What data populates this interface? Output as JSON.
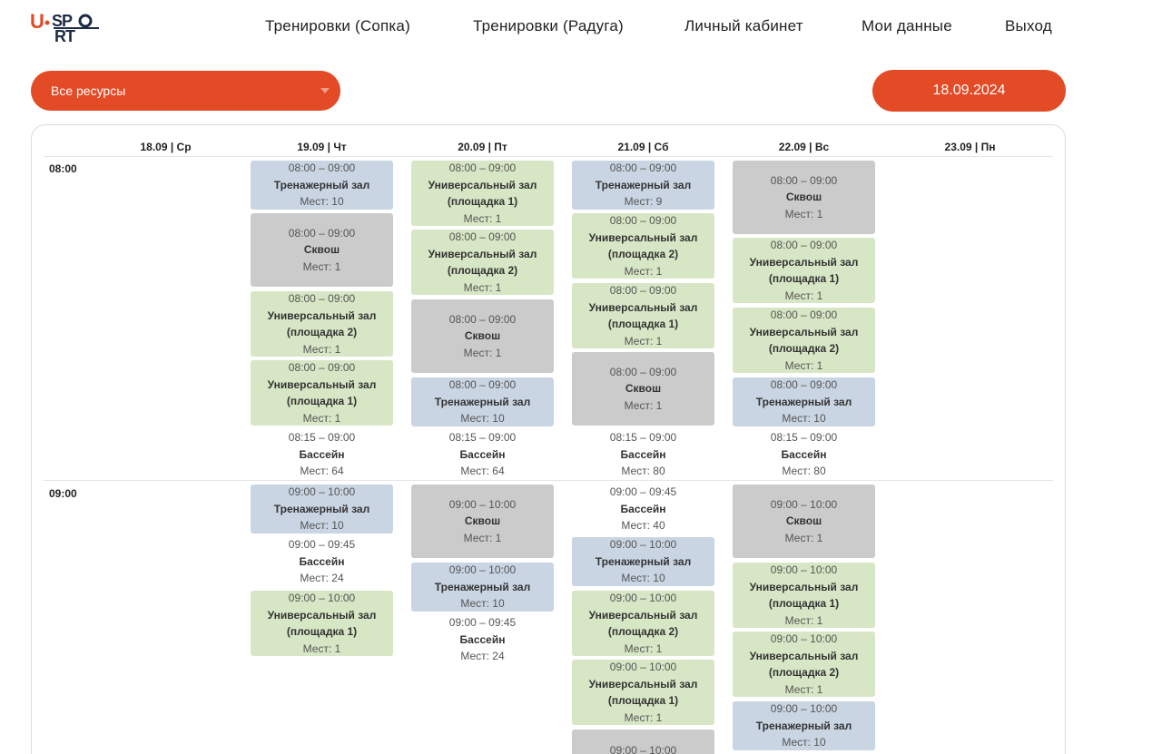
{
  "logo": {
    "text": "U·SPORT",
    "accent": "#e34a26",
    "dark": "#1c2a44"
  },
  "nav": [
    {
      "label": "Тренировки (Сопка)"
    },
    {
      "label": "Тренировки (Радуга)"
    },
    {
      "label": "Личный кабинет"
    },
    {
      "label": "Мои данные"
    },
    {
      "label": "Выход"
    }
  ],
  "controls": {
    "resource_select": "Все ресурсы",
    "date": "18.09.2024",
    "accent": "#e34a26"
  },
  "days": [
    "18.09 | Ср",
    "19.09 | Чт",
    "20.09 | Пт",
    "21.09 | Сб",
    "22.09 | Вс",
    "23.09 | Пн"
  ],
  "hours": [
    "08:00",
    "09:00"
  ],
  "slots": [
    {
      "type": "gym",
      "time": "08:00 – 09:00",
      "name": "Тренажерный зал",
      "places": "Мест: 10"
    },
    {
      "type": "squash",
      "time": "08:00 – 09:00",
      "name": "Сквош",
      "places": "Мест: 1"
    },
    {
      "type": "hall",
      "time": "08:00 – 09:00",
      "name": "Универсальный зал (площадка 2)",
      "places": "Мест: 1"
    },
    {
      "type": "hall",
      "time": "08:00 – 09:00",
      "name": "Универсальный зал (площадка 1)",
      "places": "Мест: 1"
    },
    {
      "type": "pool",
      "time": "08:15 – 09:00",
      "name": "Бассейн",
      "places": "Мест: 64"
    },
    {
      "type": "gym",
      "time": "09:00 – 10:00",
      "name": "Тренажерный зал",
      "places": "Мест: 10"
    },
    {
      "type": "pool",
      "time": "09:00 – 09:45",
      "name": "Бассейн",
      "places": "Мест: 24"
    },
    {
      "type": "hall",
      "time": "09:00 – 10:00",
      "name": "Универсальный зал (площадка 1)",
      "places": "Мест: 1"
    },
    {
      "type": "hall",
      "time": "08:00 – 09:00",
      "name": "Универсальный зал (площадка 1)",
      "places": "Мест: 1"
    },
    {
      "type": "hall",
      "time": "08:00 – 09:00",
      "name": "Универсальный зал (площадка 2)",
      "places": "Мест: 1"
    },
    {
      "type": "squash",
      "time": "08:00 – 09:00",
      "name": "Сквош",
      "places": "Мест: 1"
    },
    {
      "type": "gym",
      "time": "08:00 – 09:00",
      "name": "Тренажерный зал",
      "places": "Мест: 10"
    },
    {
      "type": "pool",
      "time": "08:15 – 09:00",
      "name": "Бассейн",
      "places": "Мест: 64"
    },
    {
      "type": "squash",
      "time": "09:00 – 10:00",
      "name": "Сквош",
      "places": "Мест: 1"
    },
    {
      "type": "gym",
      "time": "09:00 – 10:00",
      "name": "Тренажерный зал",
      "places": "Мест: 10"
    },
    {
      "type": "pool",
      "time": "09:00 – 09:45",
      "name": "Бассейн",
      "places": "Мест: 24"
    },
    {
      "type": "gym",
      "time": "08:00 – 09:00",
      "name": "Тренажерный зал",
      "places": "Мест: 9"
    },
    {
      "type": "hall",
      "time": "08:00 – 09:00",
      "name": "Универсальный зал (площадка 2)",
      "places": "Мест: 1"
    },
    {
      "type": "hall",
      "time": "08:00 – 09:00",
      "name": "Универсальный зал (площадка 1)",
      "places": "Мест: 1"
    },
    {
      "type": "squash",
      "time": "08:00 – 09:00",
      "name": "Сквош",
      "places": "Мест: 1"
    },
    {
      "type": "pool",
      "time": "08:15 – 09:00",
      "name": "Бассейн",
      "places": "Мест: 80"
    },
    {
      "type": "pool",
      "time": "09:00 – 09:45",
      "name": "Бассейн",
      "places": "Мест: 40"
    },
    {
      "type": "gym",
      "time": "09:00 – 10:00",
      "name": "Тренажерный зал",
      "places": "Мест: 10"
    },
    {
      "type": "hall",
      "time": "09:00 – 10:00",
      "name": "Универсальный зал (площадка 2)",
      "places": "Мест: 1"
    },
    {
      "type": "hall",
      "time": "09:00 – 10:00",
      "name": "Универсальный зал (площадка 1)",
      "places": "Мест: 1"
    },
    {
      "type": "squash",
      "time": "09:00 – 10:00",
      "name": "",
      "places": ""
    },
    {
      "type": "squash",
      "time": "08:00 – 09:00",
      "name": "Сквош",
      "places": "Мест: 1"
    },
    {
      "type": "hall",
      "time": "08:00 – 09:00",
      "name": "Универсальный зал (площадка 1)",
      "places": "Мест: 1"
    },
    {
      "type": "hall",
      "time": "08:00 – 09:00",
      "name": "Универсальный зал (площадка 2)",
      "places": "Мест: 1"
    },
    {
      "type": "gym",
      "time": "08:00 – 09:00",
      "name": "Тренажерный зал",
      "places": "Мест: 10"
    },
    {
      "type": "pool",
      "time": "08:15 – 09:00",
      "name": "Бассейн",
      "places": "Мест: 80"
    },
    {
      "type": "squash",
      "time": "09:00 – 10:00",
      "name": "Сквош",
      "places": "Мест: 1"
    },
    {
      "type": "hall",
      "time": "09:00 – 10:00",
      "name": "Универсальный зал (площадка 1)",
      "places": "Мест: 1"
    },
    {
      "type": "hall",
      "time": "09:00 – 10:00",
      "name": "Универсальный зал (площадка 2)",
      "places": "Мест: 1"
    },
    {
      "type": "gym",
      "time": "09:00 – 10:00",
      "name": "Тренажерный зал",
      "places": "Мест: 10"
    }
  ]
}
